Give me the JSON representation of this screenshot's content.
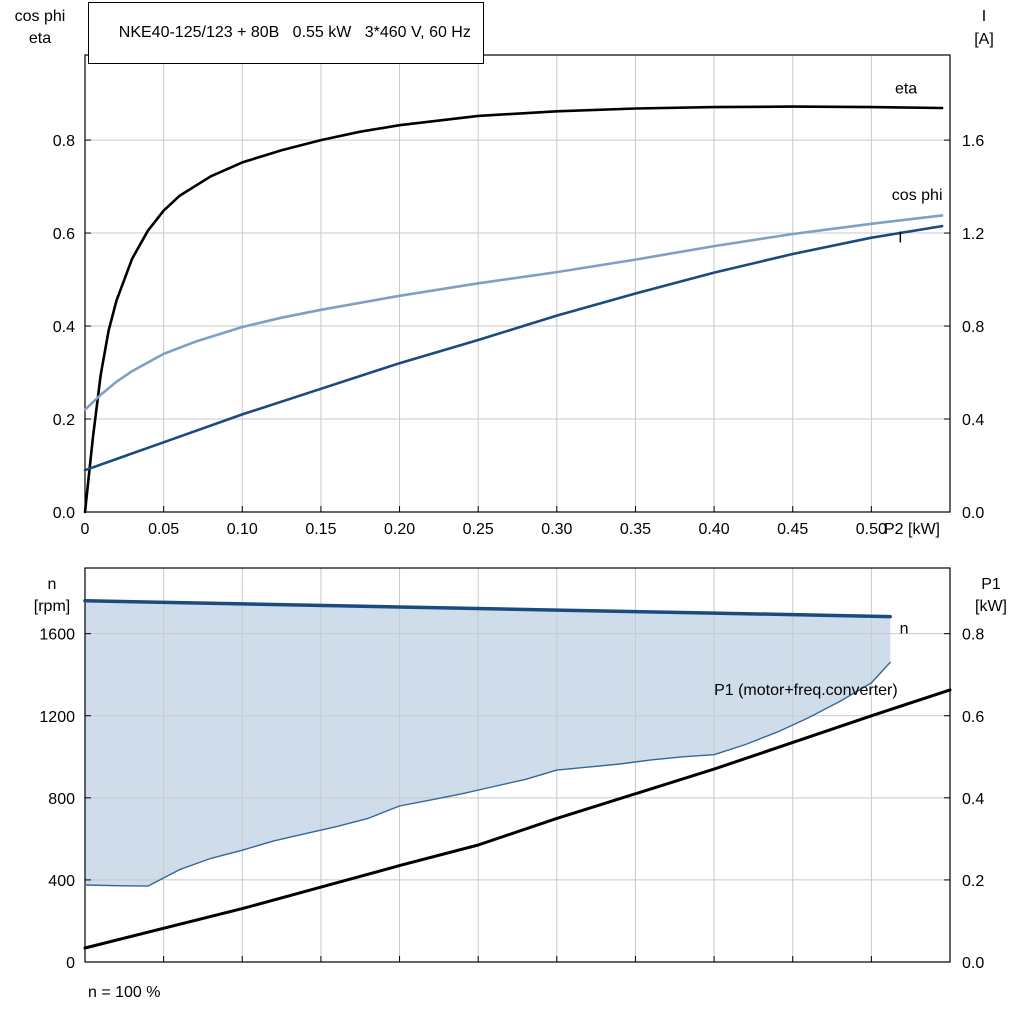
{
  "page": {
    "background": "#ffffff",
    "grid_color": "#c9c9c9",
    "axis_color": "#000000"
  },
  "chart_data": [
    {
      "type": "line",
      "title": "NKE40-125/123 + 80B   0.55 kW   3*460 V, 60 Hz",
      "x_axis": {
        "label": "P2 [kW]",
        "min": 0,
        "max": 0.55,
        "ticks": [
          0,
          0.05,
          0.1,
          0.15,
          0.2,
          0.25,
          0.3,
          0.35,
          0.4,
          0.45,
          0.5
        ],
        "tick_labels": [
          "0",
          "0.05",
          "0.10",
          "0.15",
          "0.20",
          "0.25",
          "0.30",
          "0.35",
          "0.40",
          "0.45",
          "0.50"
        ],
        "show_tick_labels": true
      },
      "y_left": {
        "title_lines": [
          "cos phi",
          "eta"
        ],
        "min": 0,
        "max": 0.983,
        "ticks": [
          0,
          0.2,
          0.4,
          0.6,
          0.8
        ],
        "tick_labels": [
          "0.0",
          "0.2",
          "0.4",
          "0.6",
          "0.8"
        ]
      },
      "y_right": {
        "title_lines": [
          "I",
          "[A]"
        ],
        "min": 0,
        "max": 1.966,
        "ticks": [
          0,
          0.4,
          0.8,
          1.2,
          1.6
        ],
        "tick_labels": [
          "0.0",
          "0.4",
          "0.8",
          "1.2",
          "1.6"
        ]
      },
      "grid": true,
      "series": [
        {
          "name": "eta",
          "axis": "left",
          "color": "#000000",
          "width": 2.6,
          "label": "eta",
          "label_color": "#000000",
          "label_pos": [
            0.515,
            0.9
          ],
          "x": [
            0,
            0.005,
            0.01,
            0.015,
            0.02,
            0.03,
            0.04,
            0.05,
            0.06,
            0.08,
            0.1,
            0.125,
            0.15,
            0.175,
            0.2,
            0.25,
            0.3,
            0.35,
            0.4,
            0.45,
            0.5,
            0.545
          ],
          "y": [
            0,
            0.16,
            0.295,
            0.39,
            0.455,
            0.545,
            0.605,
            0.648,
            0.68,
            0.722,
            0.752,
            0.778,
            0.8,
            0.818,
            0.832,
            0.852,
            0.862,
            0.868,
            0.871,
            0.872,
            0.871,
            0.869
          ]
        },
        {
          "name": "cos-phi",
          "axis": "left",
          "color": "#7FA0C4",
          "width": 2.6,
          "label": "cos phi",
          "label_color": "#7FA0C4",
          "label_pos": [
            0.513,
            0.671
          ],
          "x": [
            0,
            0.01,
            0.02,
            0.03,
            0.05,
            0.07,
            0.1,
            0.125,
            0.15,
            0.2,
            0.25,
            0.3,
            0.35,
            0.4,
            0.45,
            0.5,
            0.545
          ],
          "y": [
            0.22,
            0.252,
            0.28,
            0.303,
            0.34,
            0.366,
            0.398,
            0.418,
            0.435,
            0.465,
            0.492,
            0.516,
            0.543,
            0.572,
            0.598,
            0.62,
            0.638
          ]
        },
        {
          "name": "current",
          "axis": "right",
          "color": "#1A4B7E",
          "width": 2.6,
          "label": "I",
          "label_color": "#1A4B7E",
          "label_pos": [
            0.517,
            1.16
          ],
          "x": [
            0,
            0.05,
            0.1,
            0.15,
            0.2,
            0.25,
            0.3,
            0.35,
            0.4,
            0.45,
            0.5,
            0.545
          ],
          "y": [
            0.18,
            0.3,
            0.42,
            0.53,
            0.64,
            0.74,
            0.845,
            0.94,
            1.03,
            1.11,
            1.18,
            1.23
          ]
        }
      ]
    },
    {
      "type": "line",
      "annotation": "n = 100 %",
      "x_axis": {
        "label": "",
        "min": 0,
        "max": 0.55,
        "ticks": [
          0,
          0.05,
          0.1,
          0.15,
          0.2,
          0.25,
          0.3,
          0.35,
          0.4,
          0.45,
          0.5
        ],
        "tick_labels": [],
        "show_tick_labels": false
      },
      "y_left": {
        "title_lines": [
          "n",
          "[rpm]"
        ],
        "min": 0,
        "max": 1920,
        "ticks": [
          0,
          400,
          800,
          1200,
          1600
        ],
        "tick_labels": [
          "0",
          "400",
          "800",
          "1200",
          "1600"
        ]
      },
      "y_right": {
        "title_lines": [
          "P1",
          "[kW]"
        ],
        "min": 0,
        "max": 0.96,
        "ticks": [
          0,
          0.2,
          0.4,
          0.6,
          0.8
        ],
        "tick_labels": [
          "0.0",
          "0.2",
          "0.4",
          "0.6",
          "0.8"
        ]
      },
      "grid": true,
      "fill_region": {
        "upper": "n",
        "lower": "n-min",
        "color": "#CFDCE9"
      },
      "series": [
        {
          "name": "n-min",
          "axis": "left",
          "color": "#34679A",
          "width": 1.4,
          "x": [
            0,
            0.02,
            0.04,
            0.06,
            0.08,
            0.1,
            0.12,
            0.14,
            0.16,
            0.18,
            0.2,
            0.22,
            0.24,
            0.26,
            0.28,
            0.3,
            0.32,
            0.34,
            0.36,
            0.38,
            0.4,
            0.42,
            0.44,
            0.46,
            0.48,
            0.5,
            0.512
          ],
          "y": [
            375,
            372,
            370,
            450,
            505,
            545,
            590,
            625,
            660,
            700,
            760,
            790,
            820,
            855,
            890,
            935,
            950,
            965,
            985,
            1000,
            1010,
            1060,
            1120,
            1190,
            1270,
            1360,
            1460
          ]
        },
        {
          "name": "n",
          "axis": "left",
          "color": "#1A4B7E",
          "width": 3.5,
          "label": "n",
          "label_color": "#2E5F99",
          "label_pos": [
            0.518,
            1600
          ],
          "x": [
            0,
            0.1,
            0.2,
            0.3,
            0.4,
            0.5,
            0.512
          ],
          "y": [
            1760,
            1745,
            1730,
            1715,
            1700,
            1685,
            1683
          ]
        },
        {
          "name": "P1",
          "axis": "right",
          "color": "#000000",
          "width": 3,
          "label": "P1 (motor+freq.converter)",
          "label_color": "#000000",
          "label_pos": [
            0.4,
            0.65
          ],
          "x": [
            0,
            0.1,
            0.2,
            0.25,
            0.3,
            0.4,
            0.5,
            0.55
          ],
          "y": [
            0.034,
            0.13,
            0.235,
            0.285,
            0.35,
            0.47,
            0.6,
            0.663
          ]
        }
      ]
    }
  ]
}
